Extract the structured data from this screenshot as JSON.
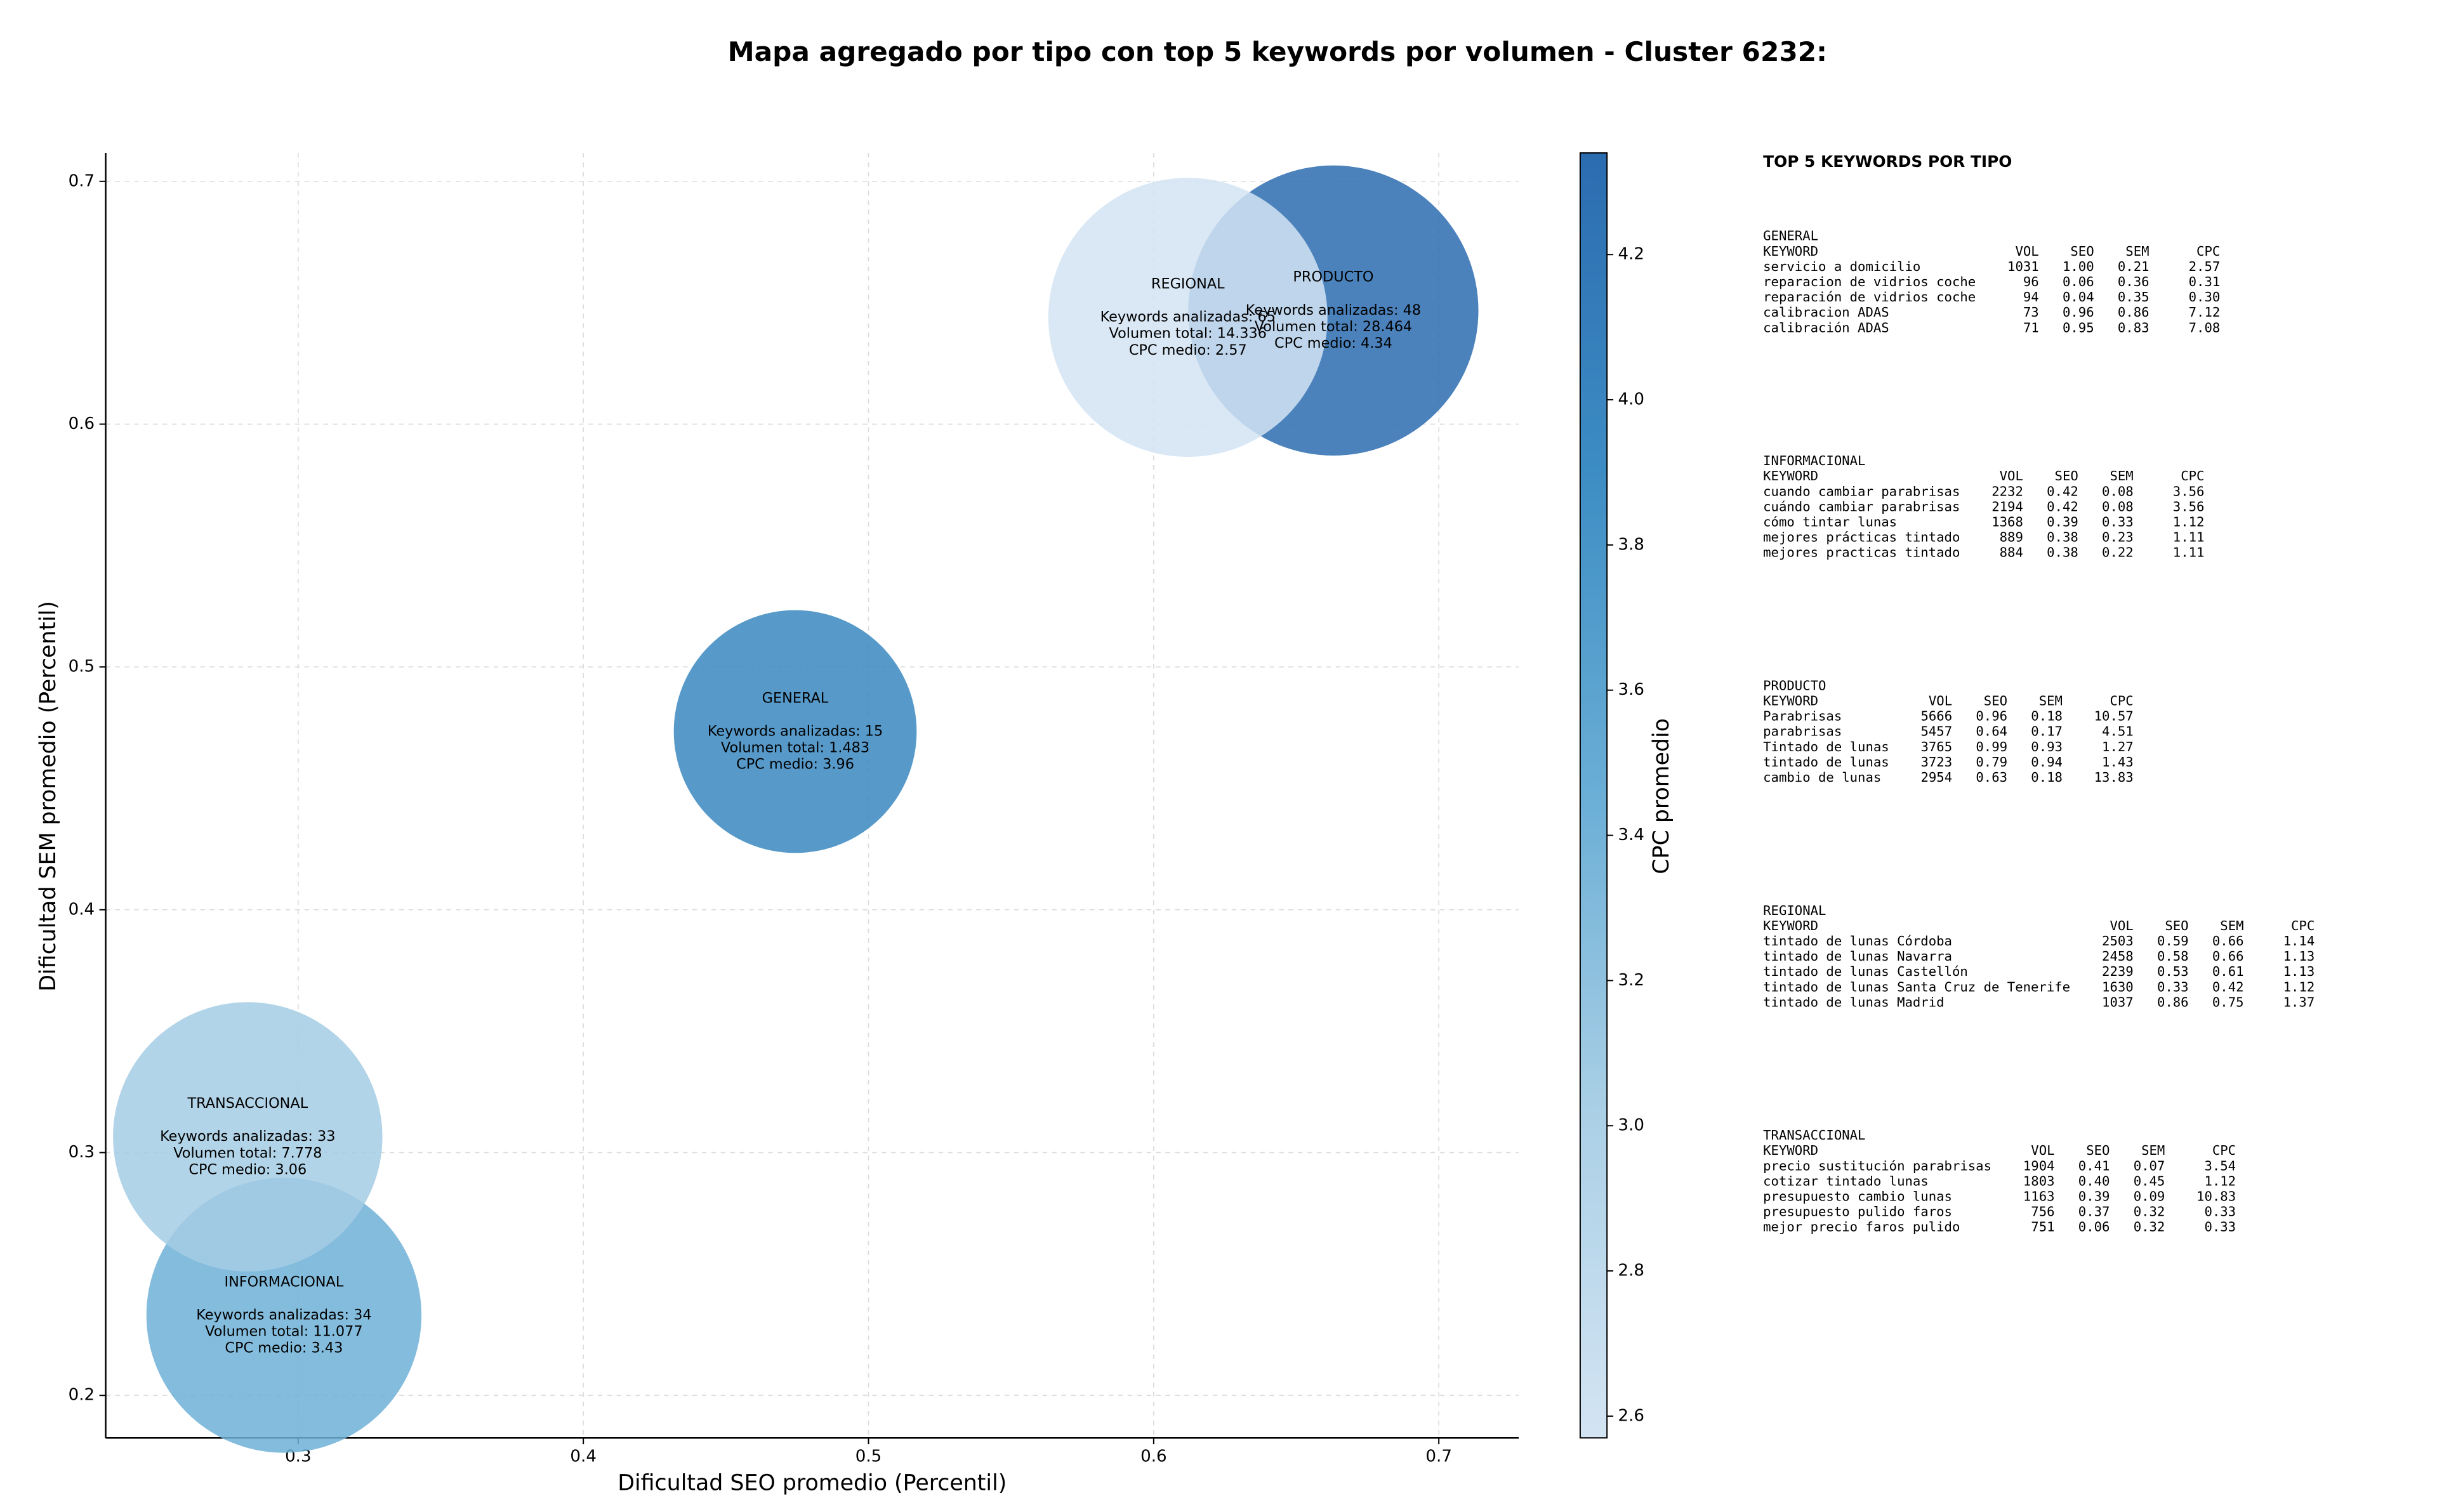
{
  "chart_data": {
    "type": "bubble",
    "title": "Mapa agregado por tipo con top 5 keywords por volumen - Cluster 6232:",
    "xlabel": "Dificultad SEO promedio (Percentil)",
    "ylabel": "Dificultad SEM promedio (Percentil)",
    "xlim": [
      0.2325,
      0.728
    ],
    "ylim": [
      0.1825,
      0.7117
    ],
    "xticks": [
      0.3,
      0.4,
      0.5,
      0.6,
      0.7
    ],
    "yticks": [
      0.2,
      0.3,
      0.4,
      0.5,
      0.6,
      0.7
    ],
    "grid": true,
    "colorbar": {
      "label": "CPC promedio",
      "clim": [
        2.57,
        4.34
      ],
      "ticks": [
        2.6,
        2.8,
        {
          "value": 3,
          "label": "3.0"
        },
        3.2,
        3.4,
        3.6,
        3.8,
        {
          "value": 4,
          "label": "4.0"
        },
        4.2
      ],
      "colors": [
        "#d3e4f3",
        "#abd0e6",
        "#6aaed6",
        "#3d8dc4",
        "#2b6cb0"
      ]
    },
    "points": [
      {
        "name": "GENERAL",
        "x": 0.4743,
        "y": 0.4734,
        "keywords": 15,
        "volume": 1483,
        "cpc": 3.96,
        "text": [
          "Keywords analizadas: 15",
          "Volumen total: 1.483",
          "CPC medio: 3.96"
        ]
      },
      {
        "name": "INFORMACIONAL",
        "x": 0.295,
        "y": 0.233,
        "keywords": 34,
        "volume": 11077,
        "cpc": 3.43,
        "text": [
          "Keywords analizadas: 34",
          "Volumen total: 11.077",
          "CPC medio: 3.43"
        ]
      },
      {
        "name": "PRODUCTO",
        "x": 0.663,
        "y": 0.6468,
        "keywords": 48,
        "volume": 28464,
        "cpc": 4.34,
        "text": [
          "Keywords analizadas: 48",
          "Volumen total: 28.464",
          "CPC medio: 4.34"
        ]
      },
      {
        "name": "REGIONAL",
        "x": 0.612,
        "y": 0.644,
        "keywords": 65,
        "volume": 14336,
        "cpc": 2.57,
        "text": [
          "Keywords analizadas: 65",
          "Volumen total: 14.336",
          "CPC medio: 2.57"
        ]
      },
      {
        "name": "TRANSACCIONAL",
        "x": 0.2823,
        "y": 0.3065,
        "keywords": 33,
        "volume": 7778,
        "cpc": 3.06,
        "text": [
          "Keywords analizadas: 33",
          "Volumen total: 7.778",
          "CPC medio: 3.06"
        ]
      }
    ]
  },
  "table": {
    "title": "TOP 5 KEYWORDS POR TIPO",
    "columns": [
      "KEYWORD",
      "VOL",
      "SEO",
      "SEM",
      "CPC"
    ],
    "groups": [
      {
        "name": "GENERAL",
        "rows": [
          [
            "servicio a domicilio",
            1031,
            "1.00",
            "0.21",
            "2.57"
          ],
          [
            "reparacion de vidrios coche",
            96,
            "0.06",
            "0.36",
            "0.31"
          ],
          [
            "reparación de vidrios coche",
            94,
            "0.04",
            "0.35",
            "0.30"
          ],
          [
            "calibracion ADAS",
            73,
            "0.96",
            "0.86",
            "7.12"
          ],
          [
            "calibración ADAS",
            71,
            "0.95",
            "0.83",
            "7.08"
          ]
        ]
      },
      {
        "name": "INFORMACIONAL",
        "rows": [
          [
            "cuando cambiar parabrisas",
            2232,
            "0.42",
            "0.08",
            "3.56"
          ],
          [
            "cuándo cambiar parabrisas",
            2194,
            "0.42",
            "0.08",
            "3.56"
          ],
          [
            "cómo tintar lunas",
            1368,
            "0.39",
            "0.33",
            "1.12"
          ],
          [
            "mejores prácticas tintado",
            889,
            "0.38",
            "0.23",
            "1.11"
          ],
          [
            "mejores practicas tintado",
            884,
            "0.38",
            "0.22",
            "1.11"
          ]
        ]
      },
      {
        "name": "PRODUCTO",
        "rows": [
          [
            "Parabrisas",
            5666,
            "0.96",
            "0.18",
            "10.57"
          ],
          [
            "parabrisas",
            5457,
            "0.64",
            "0.17",
            "4.51"
          ],
          [
            "Tintado de lunas",
            3765,
            "0.99",
            "0.93",
            "1.27"
          ],
          [
            "tintado de lunas",
            3723,
            "0.79",
            "0.94",
            "1.43"
          ],
          [
            "cambio de lunas",
            2954,
            "0.63",
            "0.18",
            "13.83"
          ]
        ]
      },
      {
        "name": "REGIONAL",
        "rows": [
          [
            "tintado de lunas Córdoba",
            2503,
            "0.59",
            "0.66",
            "1.14"
          ],
          [
            "tintado de lunas Navarra",
            2458,
            "0.58",
            "0.66",
            "1.13"
          ],
          [
            "tintado de lunas Castellón",
            2239,
            "0.53",
            "0.61",
            "1.13"
          ],
          [
            "tintado de lunas Santa Cruz de Tenerife",
            1630,
            "0.33",
            "0.42",
            "1.12"
          ],
          [
            "tintado de lunas Madrid",
            1037,
            "0.86",
            "0.75",
            "1.37"
          ]
        ]
      },
      {
        "name": "TRANSACCIONAL",
        "rows": [
          [
            "precio sustitución parabrisas",
            1904,
            "0.41",
            "0.07",
            "3.54"
          ],
          [
            "cotizar tintado lunas",
            1803,
            "0.40",
            "0.45",
            "1.12"
          ],
          [
            "presupuesto cambio lunas",
            1163,
            "0.39",
            "0.09",
            "10.83"
          ],
          [
            "presupuesto pulido faros",
            756,
            "0.37",
            "0.32",
            "0.33"
          ],
          [
            "mejor precio faros pulido",
            751,
            "0.06",
            "0.32",
            "0.33"
          ]
        ]
      }
    ]
  }
}
